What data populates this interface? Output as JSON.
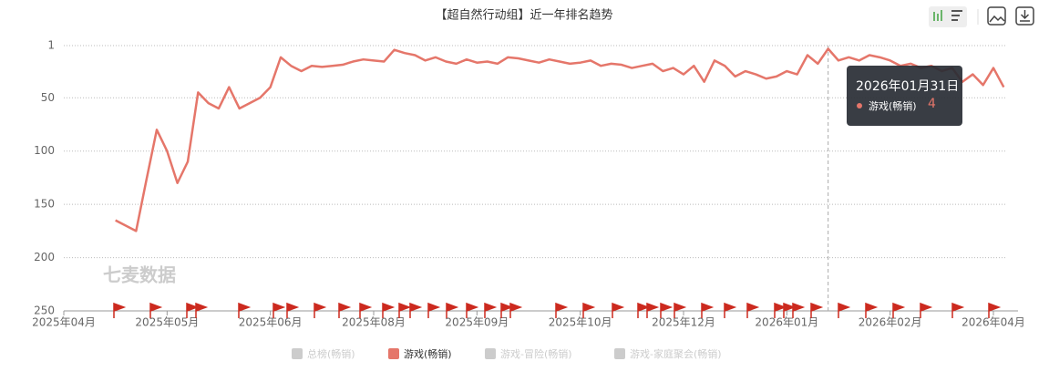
{
  "chart_data": {
    "type": "line",
    "title": "【超自然行动组】近一年排名趋势",
    "watermark": "七麦数据",
    "categories": [
      "2025年04月",
      null,
      null,
      null,
      null,
      null,
      null,
      null,
      null,
      null,
      "2025年05月",
      null,
      null,
      null,
      null,
      null,
      null,
      null,
      null,
      null,
      "2025年06月",
      null,
      null,
      null,
      null,
      null,
      null,
      null,
      null,
      null,
      "2025年08月",
      null,
      null,
      null,
      null,
      null,
      null,
      null,
      null,
      null,
      "2025年09月",
      null,
      null,
      null,
      null,
      null,
      null,
      null,
      null,
      null,
      "2025年10月",
      null,
      null,
      null,
      null,
      null,
      null,
      null,
      null,
      null,
      "2025年12月",
      null,
      null,
      null,
      null,
      null,
      null,
      null,
      null,
      null,
      "2026年01月",
      null,
      null,
      null,
      null,
      null,
      null,
      null,
      null,
      null,
      "2026年02月",
      null,
      null,
      null,
      null,
      null,
      null,
      null,
      null,
      null,
      "2026年04月",
      null
    ],
    "series": [
      {
        "name": "游戏(畅销)",
        "color": "#e5766a",
        "values": [
          null,
          null,
          null,
          null,
          null,
          165,
          170,
          175,
          127,
          80,
          100,
          130,
          110,
          45,
          55,
          60,
          40,
          60,
          55,
          50,
          40,
          12,
          20,
          25,
          20,
          21,
          20,
          19,
          16,
          14,
          15,
          16,
          5,
          8,
          10,
          15,
          12,
          16,
          18,
          14,
          17,
          16,
          18,
          12,
          13,
          15,
          17,
          14,
          16,
          18,
          17,
          15,
          20,
          18,
          19,
          22,
          20,
          18,
          25,
          22,
          28,
          20,
          35,
          15,
          20,
          30,
          25,
          28,
          32,
          30,
          25,
          28,
          10,
          18,
          4,
          15,
          12,
          15,
          10,
          12,
          15,
          20,
          18,
          22,
          20,
          25,
          22,
          35,
          28,
          38,
          22,
          40
        ]
      }
    ],
    "legend": [
      {
        "name": "总榜(畅销)",
        "color": "#ccc"
      },
      {
        "name": "游戏(畅销)",
        "color": "#e5766a"
      },
      {
        "name": "游戏-冒险(畅销)",
        "color": "#ccc"
      },
      {
        "name": "游戏-家庭聚会(畅销)",
        "color": "#ccc"
      }
    ],
    "ylim": [
      1,
      250
    ],
    "y_inverted": true,
    "yticks": [
      1,
      50,
      100,
      150,
      200,
      250
    ],
    "grid": true,
    "tooltip": {
      "title": "2026年01月31日",
      "index": 74
    }
  }
}
